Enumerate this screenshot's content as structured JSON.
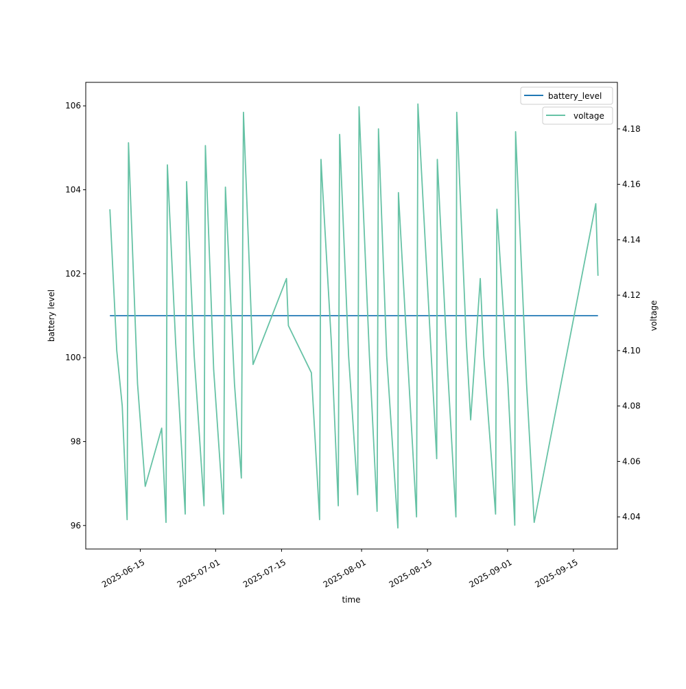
{
  "chart_data": {
    "type": "line",
    "title": "",
    "xlabel": "time",
    "ylabel": "battery level",
    "y2label": "voltage",
    "xlim": [
      "2025-06-03T10:00",
      "2025-09-24T08:00"
    ],
    "ylim": [
      95.44,
      106.56
    ],
    "y2lim": [
      4.0284,
      4.1968
    ],
    "x_ticks": [
      "2025-06-15",
      "2025-07-01",
      "2025-07-15",
      "2025-08-01",
      "2025-08-15",
      "2025-09-01",
      "2025-09-15"
    ],
    "y_ticks": [
      96,
      98,
      100,
      102,
      104,
      106
    ],
    "y2_ticks": [
      4.04,
      4.06,
      4.08,
      4.1,
      4.12,
      4.14,
      4.16,
      4.18
    ],
    "grid": false,
    "legend_placement": "top-right",
    "series": [
      {
        "name": "battery_level",
        "axis": "left",
        "color": "#1f77b4",
        "x": [
          "2025-06-08T13:00",
          "2025-09-20T05:00"
        ],
        "values": [
          101,
          101
        ]
      },
      {
        "name": "voltage",
        "axis": "right",
        "color": "#66c2a5",
        "x": [
          "2025-06-08T13:00",
          "2025-06-10T00:00",
          "2025-06-11T04:00",
          "2025-06-12T05:00",
          "2025-06-12T12:00",
          "2025-06-14T10:00",
          "2025-06-16T01:00",
          "2025-06-19T13:00",
          "2025-06-20T11:00",
          "2025-06-20T18:00",
          "2025-06-22T12:00",
          "2025-06-24T13:00",
          "2025-06-24T20:00",
          "2025-06-26T11:00",
          "2025-06-28T13:00",
          "2025-06-28T20:00",
          "2025-06-30T14:00",
          "2025-07-02T16:00",
          "2025-07-03T02:00",
          "2025-07-05T00:00",
          "2025-07-06T11:00",
          "2025-07-06T22:00",
          "2025-07-08T23:00",
          "2025-07-16T01:00",
          "2025-07-16T11:00",
          "2025-07-21T08:00",
          "2025-07-23T02:00",
          "2025-07-23T09:00",
          "2025-07-25T14:00",
          "2025-07-27T01:00",
          "2025-07-27T08:00",
          "2025-07-29T06:00",
          "2025-07-31T04:00",
          "2025-07-31T11:00",
          "2025-08-02T16:00",
          "2025-08-04T07:00",
          "2025-08-04T14:00",
          "2025-08-06T08:00",
          "2025-08-08T17:00",
          "2025-08-08T20:00",
          "2025-08-10T18:00",
          "2025-08-12T16:00",
          "2025-08-12T23:00",
          "2025-08-16T23:00",
          "2025-08-17T02:00",
          "2025-08-19T07:00",
          "2025-08-21T01:00",
          "2025-08-21T05:00",
          "2025-08-23T06:00",
          "2025-08-24T04:00",
          "2025-08-26T05:00",
          "2025-08-26T23:00",
          "2025-08-29T11:00",
          "2025-08-29T18:00",
          "2025-09-01T02:00",
          "2025-09-02T13:00",
          "2025-09-02T17:00",
          "2025-09-05T01:00",
          "2025-09-06T16:00",
          "2025-09-19T18:00",
          "2025-09-20T05:00"
        ],
        "values": [
          4.151,
          4.1,
          4.08,
          4.039,
          4.175,
          4.088,
          4.051,
          4.072,
          4.038,
          4.167,
          4.103,
          4.041,
          4.161,
          4.098,
          4.044,
          4.174,
          4.093,
          4.041,
          4.159,
          4.088,
          4.054,
          4.186,
          4.095,
          4.126,
          4.109,
          4.092,
          4.039,
          4.169,
          4.103,
          4.044,
          4.178,
          4.098,
          4.048,
          4.188,
          4.098,
          4.042,
          4.18,
          4.098,
          4.036,
          4.157,
          4.098,
          4.04,
          4.189,
          4.061,
          4.169,
          4.093,
          4.04,
          4.186,
          4.103,
          4.075,
          4.126,
          4.098,
          4.041,
          4.151,
          4.088,
          4.037,
          4.179,
          4.088,
          4.038,
          4.153,
          4.127
        ]
      }
    ]
  }
}
